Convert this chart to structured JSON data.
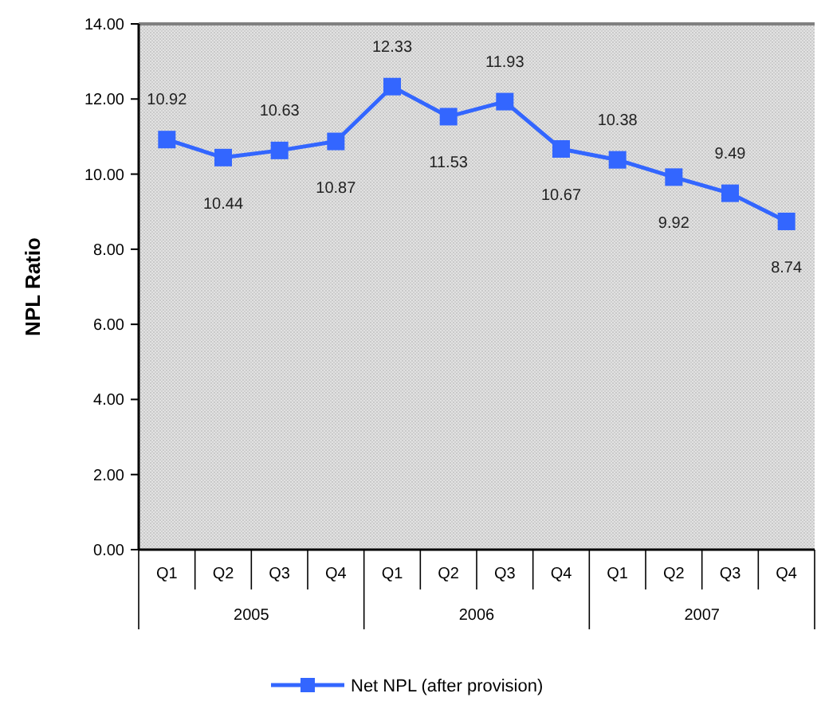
{
  "chart_data": {
    "type": "line",
    "ylabel": "NPL Ratio",
    "categories": [
      "Q1",
      "Q2",
      "Q3",
      "Q4",
      "Q1",
      "Q2",
      "Q3",
      "Q4",
      "Q1",
      "Q2",
      "Q3",
      "Q4"
    ],
    "series": [
      {
        "name": "Net NPL (after provision)",
        "color": "#3366ff",
        "values": [
          10.92,
          10.44,
          10.63,
          10.87,
          12.33,
          11.53,
          11.93,
          10.67,
          10.38,
          9.92,
          9.49,
          8.74
        ]
      }
    ],
    "ylim": [
      0,
      14
    ],
    "yticks": [
      {
        "value": 0,
        "label": "0.00"
      },
      {
        "value": 2,
        "label": "2.00"
      },
      {
        "value": 4,
        "label": "4.00"
      },
      {
        "value": 6,
        "label": "6.00"
      },
      {
        "value": 8,
        "label": "8.00"
      },
      {
        "value": 10,
        "label": "10.00"
      },
      {
        "value": 12,
        "label": "12.00"
      },
      {
        "value": 14,
        "label": "14.00"
      }
    ],
    "annotations": [
      "2005",
      "2006",
      "2007"
    ],
    "data_labels": true,
    "legend": "bottom",
    "marker": "square",
    "line_style": "solid"
  }
}
